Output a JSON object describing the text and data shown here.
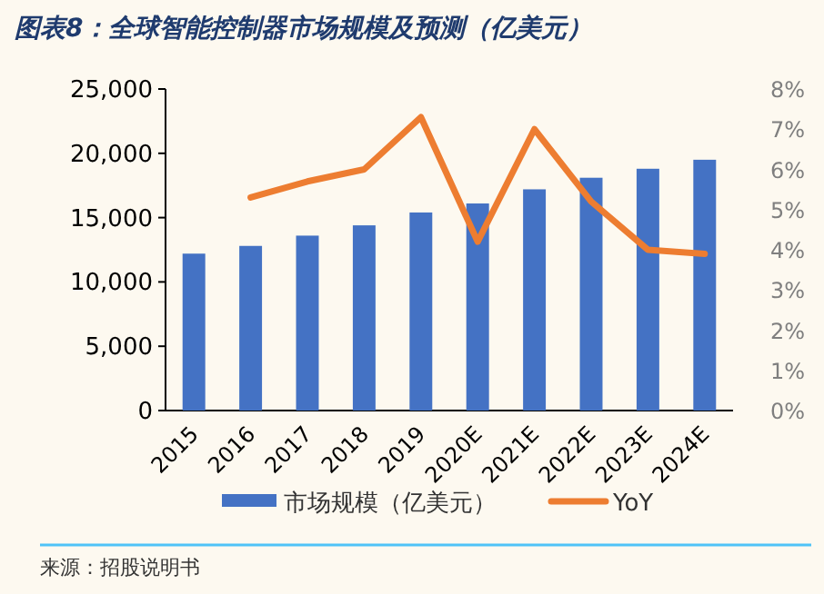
{
  "chart_data": {
    "type": "bar",
    "title": "图表8：全球智能控制器市场规模及预测（亿美元）",
    "categories": [
      "2015",
      "2016",
      "2017",
      "2018",
      "2019",
      "2020E",
      "2021E",
      "2022E",
      "2023E",
      "2024E"
    ],
    "series": [
      {
        "name": "市场规模（亿美元）",
        "color": "#4472c4",
        "values": [
          12200,
          12800,
          13600,
          14400,
          15400,
          16100,
          17200,
          18100,
          18800,
          19500
        ]
      },
      {
        "name": "YoY",
        "type": "line",
        "axis": "y2",
        "color": "#ed7d31",
        "values": [
          null,
          5.3,
          5.7,
          6.0,
          7.3,
          4.2,
          7.0,
          5.2,
          4.0,
          3.9
        ]
      }
    ],
    "ylim": [
      0,
      25000
    ],
    "yticks": [
      0,
      {
        "value": 5000,
        "label": "5,000"
      },
      {
        "value": 10000,
        "label": "10,000"
      },
      {
        "value": 15000,
        "label": "15,000"
      },
      {
        "value": 20000,
        "label": "20,000"
      },
      {
        "value": 25000,
        "label": "25,000"
      }
    ],
    "y2lim": [
      0,
      8
    ],
    "y2ticks": [
      {
        "value": 0,
        "label": "0%"
      },
      {
        "value": 1,
        "label": "1%"
      },
      {
        "value": 2,
        "label": "2%"
      },
      {
        "value": 3,
        "label": "3%"
      },
      {
        "value": 4,
        "label": "4%"
      },
      {
        "value": 5,
        "label": "5%"
      },
      {
        "value": 6,
        "label": "6%"
      },
      {
        "value": 7,
        "label": "7%"
      },
      {
        "value": 8,
        "label": "8%"
      }
    ],
    "legend": "bottom",
    "annotations": [
      "来源：招股说明书"
    ]
  }
}
